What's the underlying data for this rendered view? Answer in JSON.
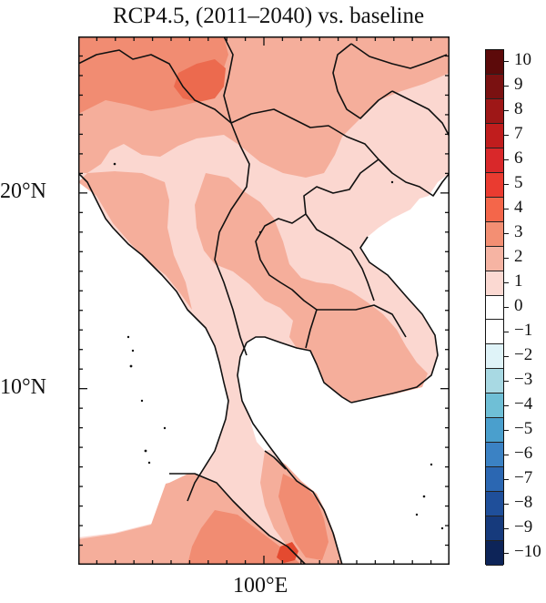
{
  "title": "RCP4.5, (2011–2040) vs. baseline",
  "axes": {
    "lat_ticks": [
      {
        "label": "20°N",
        "value": 20
      },
      {
        "label": "10°N",
        "value": 10
      }
    ],
    "lon_ticks": [
      {
        "label": "100°E",
        "value": 100
      }
    ],
    "lon_range": [
      90,
      110
    ],
    "lat_range": [
      1,
      28
    ]
  },
  "colorbar": {
    "levels": [
      "10",
      "9",
      "8",
      "7",
      "6",
      "5",
      "4",
      "3",
      "2",
      "1",
      "0",
      "−1",
      "−2",
      "−3",
      "−4",
      "−5",
      "−6",
      "−7",
      "−8",
      "−9",
      "−10"
    ],
    "colors": [
      "#5c0a0a",
      "#7a1111",
      "#9e1717",
      "#c01d1d",
      "#d9282a",
      "#ea3b30",
      "#f4664a",
      "#f38f73",
      "#f6b4a3",
      "#fbd9d2",
      "#ffffff",
      "#ffffff",
      "#dff3f8",
      "#a8d9e3",
      "#6fbfd6",
      "#4a9fcd",
      "#3b82c4",
      "#2b67b2",
      "#1f4f9a",
      "#163a7c",
      "#0d2458"
    ]
  },
  "colors": {
    "level_1_2": "#fbd7d0",
    "level_2_3": "#f5ae9b",
    "level_3_4": "#f18c72",
    "level_4_5": "#ec6a4e",
    "level_5_6": "#e44a30",
    "sea": "#ffffff",
    "border": "#111111"
  }
}
